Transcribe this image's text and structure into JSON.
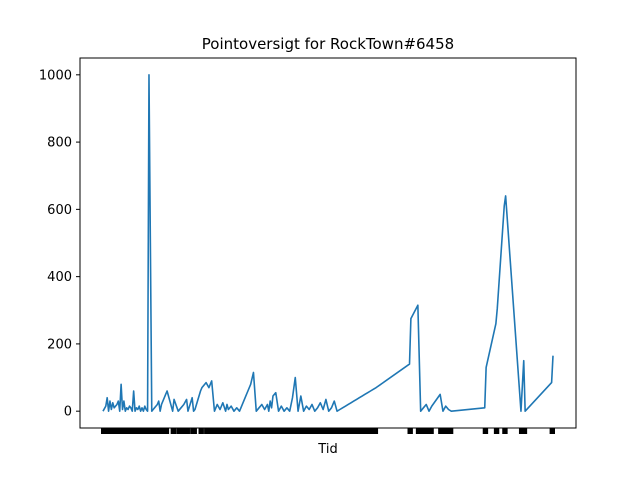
{
  "chart_data": {
    "type": "line",
    "title": "Pointoversigt for RockTown#6458",
    "xlabel": "Tid",
    "ylabel": "",
    "ylim": [
      -50,
      1050
    ],
    "yticks": [
      0,
      200,
      400,
      600,
      800,
      1000
    ],
    "grid": false,
    "legend": "none",
    "x_tick_labels_visible": false,
    "series": [
      {
        "color": "#1f77b4",
        "x": [
          0,
          1,
          1.5,
          2,
          2.5,
          3,
          3.5,
          4,
          4.5,
          5,
          5.5,
          6,
          6.5,
          7,
          7.5,
          8,
          8.5,
          9,
          9.5,
          10,
          10.5,
          11,
          11.5,
          12,
          12.5,
          13,
          13.5,
          14,
          14.5,
          15,
          15.5,
          16,
          16.5,
          17,
          17.5,
          18,
          18.5,
          19,
          19.5,
          20,
          20.5,
          21,
          21.5,
          22,
          22.5,
          23,
          25,
          25.5,
          27,
          28,
          29,
          30,
          30.5,
          32,
          32.5,
          33,
          35,
          35.5,
          37,
          38,
          39,
          40,
          41,
          42,
          43,
          44,
          44.5,
          45,
          46,
          47,
          48,
          49,
          50,
          51,
          52,
          53,
          54,
          55,
          56,
          57,
          58,
          59,
          59.5,
          60,
          60.5,
          61,
          62,
          63,
          64,
          65,
          66,
          67,
          68,
          69,
          70,
          71,
          72,
          73,
          74,
          75,
          76,
          77,
          78,
          79,
          80,
          81,
          82,
          83,
          84,
          85,
          86,
          87,
          88,
          89,
          90,
          91,
          92,
          93,
          94,
          95,
          96,
          97,
          98,
          110,
          110.5,
          113,
          114,
          115,
          116,
          117,
          118,
          121,
          122,
          123,
          124,
          125,
          137,
          137.5,
          141,
          141.5,
          144,
          144.5,
          150,
          150.5,
          151,
          151.5,
          161,
          161.5
        ],
        "y": [
          0,
          15,
          40,
          0,
          30,
          5,
          25,
          10,
          15,
          20,
          30,
          0,
          80,
          5,
          30,
          0,
          10,
          5,
          15,
          10,
          0,
          60,
          0,
          10,
          5,
          15,
          0,
          10,
          0,
          15,
          5,
          0,
          1000,
          500,
          0,
          5,
          10,
          15,
          20,
          30,
          0,
          20,
          30,
          40,
          50,
          60,
          0,
          35,
          0,
          10,
          20,
          35,
          0,
          40,
          0,
          5,
          60,
          70,
          85,
          70,
          90,
          0,
          20,
          5,
          25,
          0,
          20,
          5,
          15,
          0,
          10,
          0,
          20,
          40,
          60,
          80,
          115,
          0,
          10,
          20,
          5,
          20,
          0,
          30,
          10,
          45,
          55,
          0,
          15,
          0,
          10,
          0,
          40,
          100,
          0,
          45,
          0,
          15,
          5,
          20,
          0,
          10,
          25,
          5,
          35,
          0,
          10,
          30,
          0,
          5,
          10,
          15,
          20,
          25,
          30,
          35,
          40,
          45,
          50,
          55,
          60,
          65,
          70,
          140,
          275,
          315,
          0,
          10,
          20,
          0,
          15,
          50,
          0,
          15,
          5,
          0,
          10,
          130,
          260,
          305,
          610,
          640,
          0,
          75,
          150,
          0,
          85,
          165
        ]
      }
    ]
  }
}
